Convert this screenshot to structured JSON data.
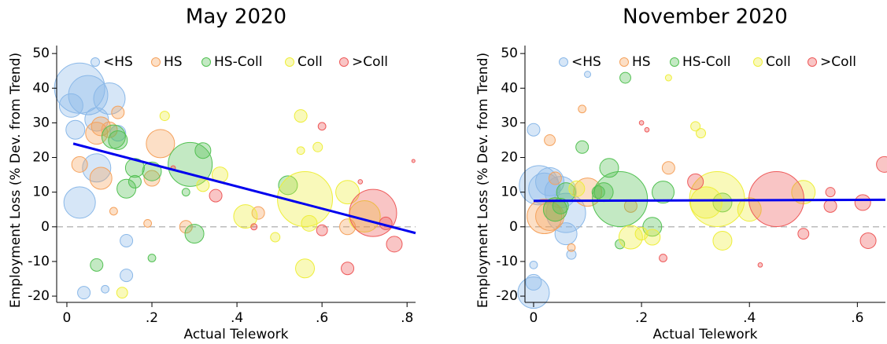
{
  "chart_data": [
    {
      "type": "scatter",
      "title": "May 2020",
      "xlabel": "Actual Telework",
      "ylabel": "Employment Loss (% Dev. from Trend)",
      "xlim": [
        -0.024,
        0.82
      ],
      "ylim": [
        -21.8,
        52.3
      ],
      "xticks": [
        {
          "value": 0,
          "label": "0"
        },
        {
          "value": 0.2,
          "label": ".2"
        },
        {
          "value": 0.4,
          "label": ".4"
        },
        {
          "value": 0.6,
          "label": ".6"
        },
        {
          "value": 0.8,
          "label": ".8"
        }
      ],
      "yticks": [
        -20,
        -10,
        0,
        10,
        20,
        30,
        40,
        50
      ],
      "legend": "top",
      "hline": 0,
      "fit": {
        "x": [
          0.015,
          0.82
        ],
        "values": [
          24,
          -1.8
        ],
        "color": "#0000ee"
      },
      "series": [
        {
          "name": "<HS",
          "color": "#8ab8e8",
          "x": [
            0.03,
            0.05,
            0.1,
            0.01,
            0.07,
            0.02,
            0.03,
            0.07,
            0.14,
            0.14,
            0.04,
            0.09,
            0.12
          ],
          "values": [
            40,
            38,
            37,
            35,
            31,
            28,
            7,
            17,
            -4,
            -14,
            -19,
            -18,
            27
          ],
          "sizes": [
            256,
            156,
            100,
            56,
            56,
            36,
            100,
            81,
            16,
            16,
            16,
            6,
            25
          ]
        },
        {
          "name": "HS",
          "color": "#f5a25d",
          "x": [
            0.08,
            0.1,
            0.07,
            0.08,
            0.03,
            0.12,
            0.22,
            0.2,
            0.11,
            0.19,
            0.28,
            0.45,
            0.66
          ],
          "values": [
            29,
            28,
            27,
            14,
            18,
            33,
            24,
            14,
            4.5,
            1,
            0,
            4,
            0
          ],
          "sizes": [
            36,
            25,
            49,
            49,
            25,
            16,
            81,
            25,
            6,
            6,
            16,
            16,
            25
          ]
        },
        {
          "name": "HS-Coll",
          "color": "#52c152",
          "x": [
            0.11,
            0.12,
            0.29,
            0.32,
            0.16,
            0.2,
            0.14,
            0.16,
            0.52,
            0.3,
            0.07,
            0.2,
            0.28
          ],
          "values": [
            26,
            25,
            18,
            22,
            17,
            16,
            11,
            13,
            12,
            -2,
            -11,
            -9,
            10
          ],
          "sizes": [
            56,
            36,
            196,
            25,
            36,
            36,
            36,
            16,
            36,
            36,
            16,
            6,
            6
          ]
        },
        {
          "name": "Coll",
          "color": "#eeee3a",
          "x": [
            0.56,
            0.66,
            0.55,
            0.59,
            0.55,
            0.36,
            0.42,
            0.49,
            0.56,
            0.7,
            0.57,
            0.13,
            0.23,
            0.32
          ],
          "values": [
            8,
            10,
            32,
            23,
            22,
            15,
            3,
            -3,
            -12,
            3,
            1,
            -19,
            32,
            12
          ],
          "sizes": [
            306,
            56,
            16,
            9,
            6,
            25,
            56,
            9,
            36,
            100,
            25,
            12,
            9,
            16
          ]
        },
        {
          "name": ">Coll",
          "color": "#ee5a5a",
          "x": [
            0.72,
            0.6,
            0.35,
            0.44,
            0.6,
            0.66,
            0.77,
            0.75,
            0.69,
            0.815,
            0.25
          ],
          "values": [
            4,
            29,
            9,
            0,
            -1,
            -12,
            -5,
            1,
            13,
            19,
            17
          ],
          "sizes": [
            225,
            6,
            16,
            4,
            12,
            16,
            25,
            16,
            2,
            1,
            2
          ]
        }
      ]
    },
    {
      "type": "scatter",
      "title": "November 2020",
      "xlabel": "Actual Telework",
      "ylabel": "Employment Loss (% Dev. from Trend)",
      "xlim": [
        -0.016,
        0.652
      ],
      "ylim": [
        -21.8,
        52.3
      ],
      "xticks": [
        {
          "value": 0,
          "label": "0"
        },
        {
          "value": 0.2,
          "label": ".2"
        },
        {
          "value": 0.4,
          "label": ".4"
        },
        {
          "value": 0.6,
          "label": ".6"
        }
      ],
      "yticks": [
        -20,
        -10,
        0,
        10,
        20,
        30,
        40,
        50
      ],
      "legend": "top",
      "hline": 0,
      "fit": {
        "x": [
          0,
          0.652
        ],
        "values": [
          7.5,
          7.8
        ],
        "color": "#0000ee"
      },
      "series": [
        {
          "name": "<HS",
          "color": "#8ab8e8",
          "x": [
            0.01,
            0.02,
            0.03,
            0.05,
            0.06,
            0,
            0,
            0,
            0,
            0.06,
            0.07,
            0.1
          ],
          "values": [
            12,
            11,
            13,
            10,
            4,
            -19,
            -16,
            -11,
            28,
            -2,
            -8,
            44
          ],
          "sizes": [
            156,
            100,
            81,
            100,
            156,
            100,
            25,
            6,
            16,
            49,
            9,
            4
          ]
        },
        {
          "name": "HS",
          "color": "#f5a25d",
          "x": [
            0.02,
            0.03,
            0.03,
            0.04,
            0.09,
            0.1,
            0.07,
            0.25,
            0.18,
            0.04
          ],
          "values": [
            3,
            3,
            25,
            14,
            34,
            10,
            -6,
            17,
            6,
            5
          ],
          "sizes": [
            121,
            81,
            12,
            16,
            6,
            81,
            6,
            16,
            16,
            56
          ]
        },
        {
          "name": "HS-Coll",
          "color": "#52c152",
          "x": [
            0.04,
            0.05,
            0.06,
            0.09,
            0.13,
            0.14,
            0.16,
            0.24,
            0.35,
            0.22,
            0.16,
            0.17,
            0.12
          ],
          "values": [
            5,
            6,
            10,
            23,
            10,
            17,
            8,
            10,
            7,
            0,
            -5,
            43,
            10
          ],
          "sizes": [
            56,
            25,
            36,
            16,
            36,
            36,
            306,
            49,
            36,
            36,
            9,
            12,
            16
          ]
        },
        {
          "name": "Coll",
          "color": "#eeee3a",
          "x": [
            0.34,
            0.32,
            0.4,
            0.5,
            0.3,
            0.31,
            0.25,
            0.2,
            0.18,
            0.22,
            0.35,
            0.08
          ],
          "values": [
            8,
            7,
            5,
            10,
            29,
            27,
            43,
            -2,
            -3,
            -3,
            -4,
            11
          ],
          "sizes": [
            306,
            100,
            56,
            56,
            9,
            9,
            4,
            16,
            56,
            25,
            36,
            25
          ]
        },
        {
          "name": ">Coll",
          "color": "#ee5a5a",
          "x": [
            0.45,
            0.3,
            0.55,
            0.55,
            0.61,
            0.62,
            0.5,
            0.2,
            0.21,
            0.24,
            0.42,
            0.65
          ],
          "values": [
            8,
            13,
            10,
            6,
            7,
            -4,
            -2,
            30,
            28,
            -9,
            -11,
            18
          ],
          "sizes": [
            306,
            25,
            9,
            16,
            25,
            25,
            12,
            2,
            2,
            6,
            2,
            25
          ]
        }
      ]
    }
  ]
}
